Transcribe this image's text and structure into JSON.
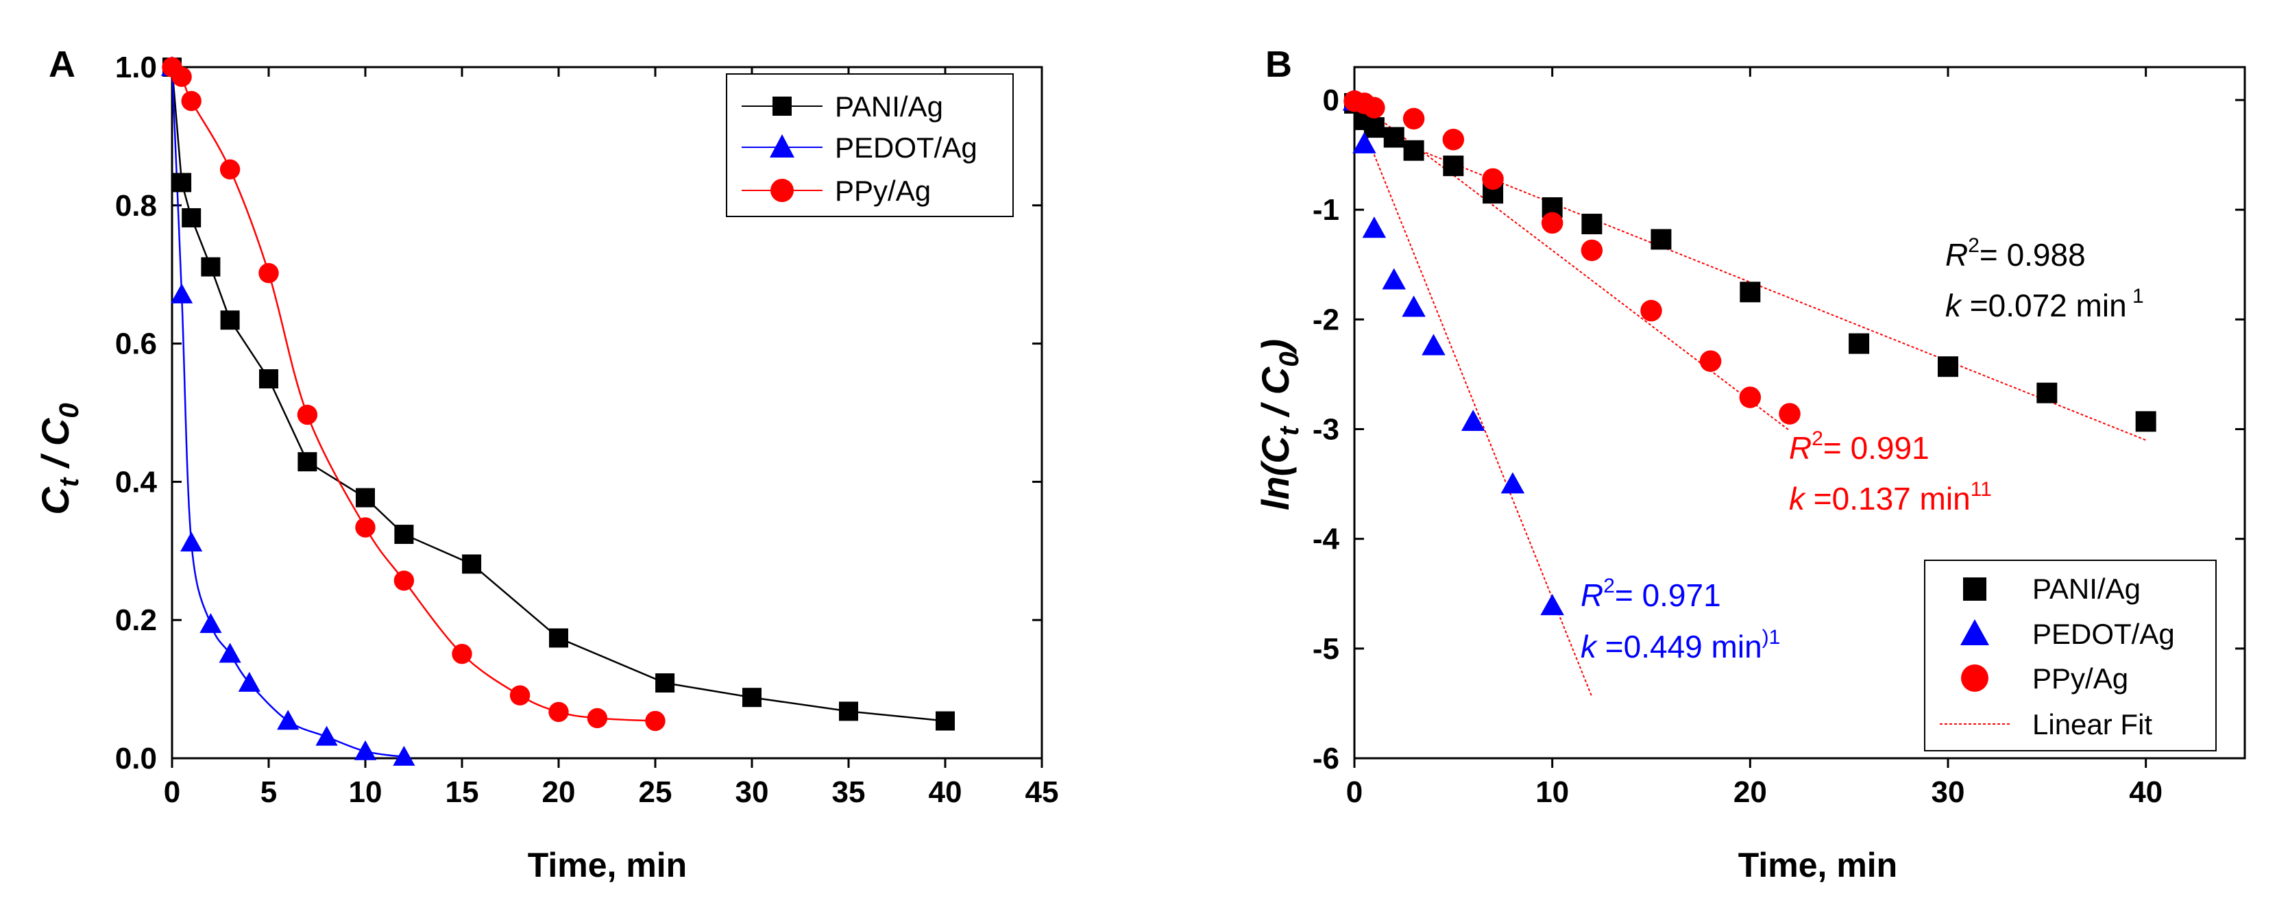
{
  "chart_data": [
    {
      "type": "line",
      "panel_label": "A",
      "xlabel": "Time, min",
      "ylabel_main": "C",
      "ylabel_sub1": "t",
      "ylabel_slash": " / C",
      "ylabel_sub2": "0",
      "xlim": [
        0,
        45
      ],
      "ylim": [
        0,
        1.0
      ],
      "xticks": [
        "0",
        "5",
        "10",
        "15",
        "20",
        "25",
        "30",
        "35",
        "40",
        "45"
      ],
      "yticks": [
        "0.0",
        "0.2",
        "0.4",
        "0.6",
        "0.8",
        "1.0"
      ],
      "legend_position": "top-right",
      "series": [
        {
          "name": "PANI/Ag",
          "color": "#000000",
          "marker": "square",
          "x": [
            0,
            0.5,
            1,
            2,
            3,
            5,
            7,
            10,
            12,
            15.5,
            20,
            25.5,
            30,
            35,
            40
          ],
          "y": [
            1.0,
            0.833,
            0.782,
            0.711,
            0.634,
            0.549,
            0.429,
            0.377,
            0.324,
            0.281,
            0.174,
            0.109,
            0.088,
            0.068,
            0.054
          ]
        },
        {
          "name": "PEDOT/Ag",
          "color": "#0000ff",
          "marker": "triangle",
          "x": [
            0,
            0.5,
            1,
            2,
            3,
            4,
            6,
            8,
            10,
            12
          ],
          "y": [
            1.0,
            0.671,
            0.312,
            0.194,
            0.151,
            0.109,
            0.054,
            0.031,
            0.01,
            0.002
          ]
        },
        {
          "name": "PPy/Ag",
          "color": "#ff0000",
          "marker": "circle",
          "x": [
            0,
            0.5,
            1,
            3,
            5,
            7,
            10,
            12,
            15,
            18,
            20,
            22,
            25
          ],
          "y": [
            1.0,
            0.986,
            0.951,
            0.852,
            0.702,
            0.497,
            0.334,
            0.257,
            0.151,
            0.091,
            0.067,
            0.058,
            0.054
          ]
        }
      ]
    },
    {
      "type": "scatter",
      "panel_label": "B",
      "xlabel": "Time, min",
      "ylabel_main": "ln(C",
      "ylabel_sub1": "t",
      "ylabel_slash": " / C",
      "ylabel_sub2": "0",
      "ylabel_close": ")",
      "xlim": [
        0,
        45
      ],
      "ylim": [
        -6,
        0.3
      ],
      "xticks": [
        "0",
        "10",
        "20",
        "30",
        "40"
      ],
      "yticks": [
        "0",
        "-1",
        "-2",
        "-3",
        "-4",
        "-5",
        "-6"
      ],
      "legend_position": "bottom-right",
      "series": [
        {
          "name": "PANI/Ag",
          "color": "#000000",
          "marker": "square",
          "x": [
            0,
            0.5,
            1,
            2,
            3,
            5,
            7,
            10,
            12,
            15.5,
            20,
            25.5,
            30,
            35,
            40
          ],
          "y": [
            -0.03,
            -0.18,
            -0.25,
            -0.34,
            -0.46,
            -0.6,
            -0.85,
            -0.98,
            -1.13,
            -1.27,
            -1.75,
            -2.22,
            -2.43,
            -2.67,
            -2.93
          ]
        },
        {
          "name": "PEDOT/Ag",
          "color": "#0000ff",
          "marker": "triangle",
          "x": [
            0,
            0.5,
            1,
            2,
            3,
            4,
            6,
            8,
            10
          ],
          "y": [
            -0.01,
            -0.4,
            -1.17,
            -1.64,
            -1.89,
            -2.24,
            -2.93,
            -3.5,
            -4.61
          ]
        },
        {
          "name": "PPy/Ag",
          "color": "#ff0000",
          "marker": "circle",
          "x": [
            0,
            0.5,
            1,
            3,
            5,
            7,
            10,
            12,
            15,
            18,
            20,
            22
          ],
          "y": [
            -0.01,
            -0.03,
            -0.07,
            -0.17,
            -0.36,
            -0.72,
            -1.12,
            -1.37,
            -1.92,
            -2.38,
            -2.71,
            -2.86
          ]
        }
      ],
      "fits": [
        {
          "series": "PANI/Ag",
          "slope": -0.072,
          "intercept": -0.22,
          "x": [
            0,
            40
          ]
        },
        {
          "series": "PPy/Ag",
          "slope": -0.137,
          "intercept": 0.0,
          "x": [
            0,
            22
          ]
        },
        {
          "series": "PEDOT/Ag",
          "slope": -0.449,
          "intercept": -0.05,
          "x": [
            0,
            12
          ]
        }
      ],
      "fit_label": "Linear Fit",
      "fit_color": "#ff0000",
      "annotations": [
        {
          "id": "pani",
          "color": "#000000",
          "r2_label": "R",
          "r2_sup": "2",
          "r2_value": "= 0.988",
          "k_label": "k",
          "k_value": " =0.072 min",
          "k_sup": " 1"
        },
        {
          "id": "ppy",
          "color": "#ff0000",
          "r2_label": "R",
          "r2_sup": "2",
          "r2_value": "= 0.991",
          "k_label": "k",
          "k_value": " =0.137 min",
          "k_sup": "11"
        },
        {
          "id": "pedot",
          "color": "#0000ff",
          "r2_label": "R",
          "r2_sup": "2",
          "r2_value": "= 0.971",
          "k_label": "k",
          "k_value": " =0.449 min",
          "k_sup": ")1"
        }
      ]
    }
  ]
}
